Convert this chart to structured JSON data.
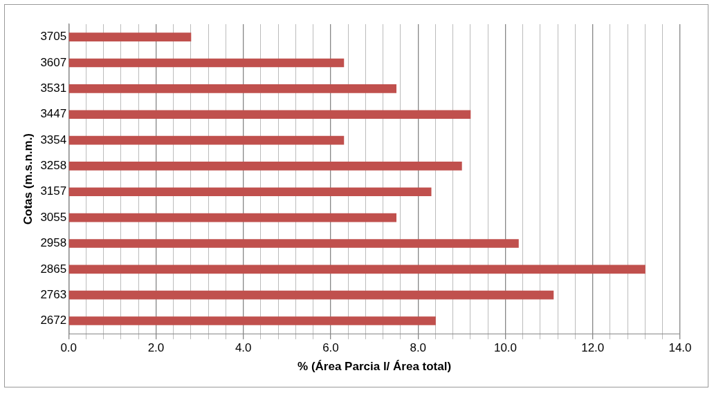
{
  "chart_data": {
    "type": "bar",
    "orientation": "horizontal",
    "xlabel": "% (Área Parcia l/ Área total)",
    "ylabel": "Cotas (m.s.n.m.)",
    "categories": [
      "3705",
      "3607",
      "3531",
      "3447",
      "3354",
      "3258",
      "3157",
      "3055",
      "2958",
      "2865",
      "2763",
      "2672"
    ],
    "values": [
      2.8,
      6.3,
      7.5,
      9.2,
      6.3,
      9.0,
      8.3,
      7.5,
      10.3,
      13.2,
      11.1,
      8.4
    ],
    "color": "#c0504d",
    "xlim": [
      0,
      14
    ],
    "xticks": [
      {
        "value": 0,
        "label": "0.0"
      },
      {
        "value": 0.4,
        "label": null
      },
      {
        "value": 0.8,
        "label": null
      },
      {
        "value": 1.2,
        "label": null
      },
      {
        "value": 1.6,
        "label": null
      },
      {
        "value": 2,
        "label": "2.0"
      },
      {
        "value": 2.4,
        "label": null
      },
      {
        "value": 2.8,
        "label": null
      },
      {
        "value": 3.2,
        "label": null
      },
      {
        "value": 3.6,
        "label": null
      },
      {
        "value": 4,
        "label": "4.0"
      },
      {
        "value": 4.4,
        "label": null
      },
      {
        "value": 4.8,
        "label": null
      },
      {
        "value": 5.2,
        "label": null
      },
      {
        "value": 5.6,
        "label": null
      },
      {
        "value": 6,
        "label": "6.0"
      },
      {
        "value": 6.4,
        "label": null
      },
      {
        "value": 6.8,
        "label": null
      },
      {
        "value": 7.2,
        "label": null
      },
      {
        "value": 7.6,
        "label": null
      },
      {
        "value": 8,
        "label": "8.0"
      },
      {
        "value": 8.4,
        "label": null
      },
      {
        "value": 8.8,
        "label": null
      },
      {
        "value": 9.2,
        "label": null
      },
      {
        "value": 9.6,
        "label": null
      },
      {
        "value": 10,
        "label": "10.0"
      },
      {
        "value": 10.4,
        "label": null
      },
      {
        "value": 10.8,
        "label": null
      },
      {
        "value": 11.2,
        "label": null
      },
      {
        "value": 11.6,
        "label": null
      },
      {
        "value": 12,
        "label": "12.0"
      },
      {
        "value": 12.4,
        "label": null
      },
      {
        "value": 12.8,
        "label": null
      },
      {
        "value": 13.2,
        "label": null
      },
      {
        "value": 13.6,
        "label": null
      },
      {
        "value": 14,
        "label": "14.0"
      }
    ],
    "grid": "x",
    "legend": false
  }
}
